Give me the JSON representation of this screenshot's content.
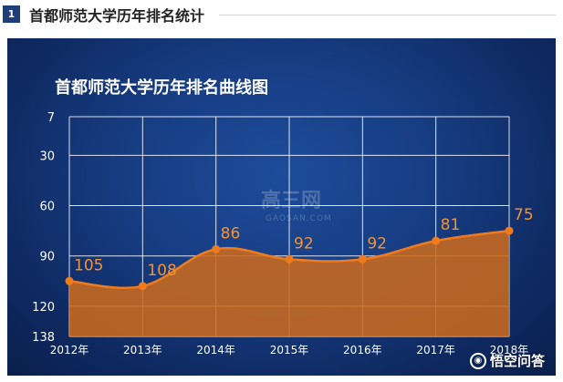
{
  "section": {
    "number": "1",
    "title": "首都师范大学历年排名统计"
  },
  "watermark": {
    "text": "高三网",
    "sub": "GAOSAN.COM"
  },
  "footer": {
    "brand": "悟空问答"
  },
  "colors": {
    "line": "#f07b1c",
    "area": "#c96a1f",
    "grid": "#ffffff",
    "label": "#f39433"
  },
  "chart_data": {
    "type": "area",
    "title": "首都师范大学历年排名曲线图",
    "categories": [
      "2012年",
      "2013年",
      "2014年",
      "2015年",
      "2016年",
      "2017年",
      "2018年"
    ],
    "values": [
      105,
      108,
      86,
      92,
      92,
      81,
      75
    ],
    "y_ticks": [
      7,
      30,
      60,
      90,
      120,
      138
    ],
    "ylim": [
      7,
      138
    ],
    "y_reversed": true,
    "grid": true
  }
}
